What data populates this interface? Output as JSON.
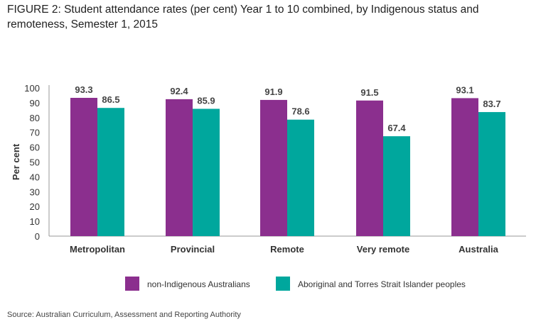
{
  "title": "FIGURE 2: Student attendance rates (per cent) Year 1 to 10 combined, by Indigenous status and remoteness, Semester 1, 2015",
  "source": "Source: Australian Curriculum, Assessment and Reporting Authority",
  "colors": {
    "series1": "#8b2f8e",
    "series2": "#00a79d",
    "axis": "#999999",
    "text": "#333333"
  },
  "chart_data": {
    "type": "bar",
    "title": "FIGURE 2: Student attendance rates (per cent) Year 1 to 10 combined, by Indigenous status and remoteness, Semester 1, 2015",
    "xlabel": "",
    "ylabel": "Per cent",
    "ylim": [
      0,
      100
    ],
    "yticks": [
      0,
      10,
      20,
      30,
      40,
      50,
      60,
      70,
      80,
      90,
      100
    ],
    "grid": false,
    "legend_position": "bottom",
    "categories": [
      "Metropolitan",
      "Provincial",
      "Remote",
      "Very remote",
      "Australia"
    ],
    "series": [
      {
        "name": "non-Indigenous Australians",
        "color": "#8b2f8e",
        "values": [
          93.3,
          92.4,
          91.9,
          91.5,
          93.1
        ]
      },
      {
        "name": "Aboriginal and Torres Strait Islander peoples",
        "color": "#00a79d",
        "values": [
          86.5,
          85.9,
          78.6,
          67.4,
          83.7
        ]
      }
    ]
  }
}
